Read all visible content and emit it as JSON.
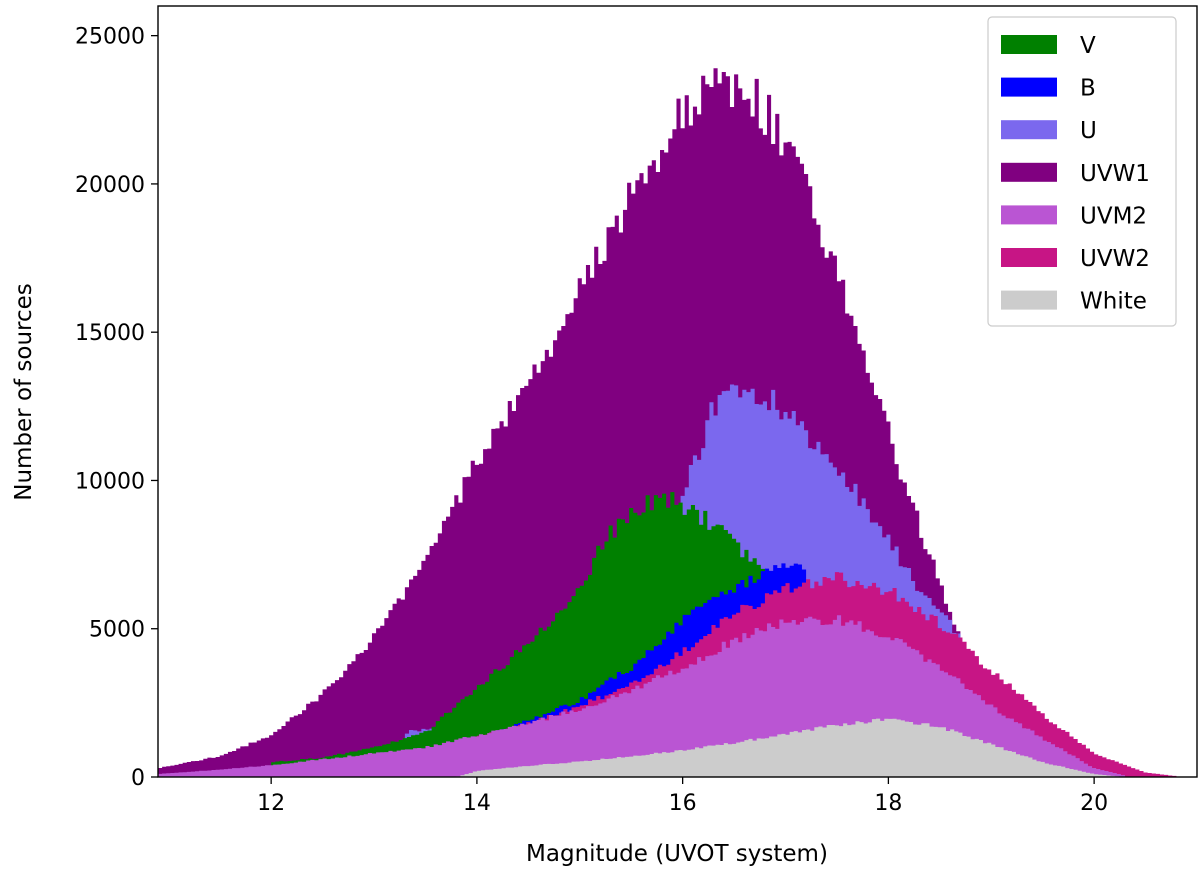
{
  "chart_data": {
    "type": "area",
    "xlabel": "Magnitude (UVOT system)",
    "ylabel": "Number of sources",
    "xlim": [
      10.9,
      21.0
    ],
    "ylim": [
      0,
      26000
    ],
    "xticks": [
      12,
      14,
      16,
      18,
      20
    ],
    "yticks": [
      0,
      5000,
      10000,
      15000,
      20000,
      25000
    ],
    "grid": false,
    "legend_position": "top-right",
    "draw_order": [
      "UVW1",
      "U",
      "V",
      "B",
      "UVW2",
      "UVM2",
      "White"
    ],
    "series": [
      {
        "name": "V",
        "color": "#008000",
        "x": [
          12.0,
          12.5,
          13.0,
          13.5,
          14.0,
          14.5,
          15.0,
          15.2,
          15.5,
          15.8,
          16.0,
          16.3,
          16.6,
          16.9
        ],
        "y": [
          500,
          650,
          1000,
          1500,
          3000,
          4500,
          6300,
          7800,
          9000,
          9400,
          9200,
          8500,
          7600,
          6800
        ]
      },
      {
        "name": "B",
        "color": "#0000ff",
        "x": [
          13.2,
          13.6,
          14.0,
          14.5,
          15.0,
          15.5,
          16.0,
          16.5,
          17.0,
          17.2
        ],
        "y": [
          800,
          1000,
          1300,
          1900,
          2600,
          3700,
          5300,
          6400,
          7200,
          6900
        ]
      },
      {
        "name": "U",
        "color": "#7b68ee",
        "x": [
          13.3,
          13.8,
          14.3,
          14.8,
          15.3,
          15.8,
          16.0,
          16.3,
          16.6,
          16.9,
          17.2,
          17.6,
          18.0,
          18.3,
          18.7
        ],
        "y": [
          1500,
          1800,
          2100,
          2700,
          4200,
          6800,
          9400,
          12500,
          13000,
          12700,
          11600,
          10000,
          8000,
          6300,
          4800
        ]
      },
      {
        "name": "UVW1",
        "color": "#800080",
        "x": [
          10.9,
          11.5,
          12.0,
          12.5,
          13.0,
          13.5,
          14.0,
          14.5,
          15.0,
          15.5,
          16.0,
          16.3,
          16.6,
          16.9,
          17.2,
          17.5,
          17.8,
          18.1,
          18.4,
          18.7,
          19.0,
          19.3
        ],
        "y": [
          300,
          700,
          1400,
          2800,
          4700,
          7200,
          10600,
          13300,
          16300,
          19700,
          22400,
          23100,
          23300,
          22000,
          19800,
          17000,
          14000,
          10600,
          7500,
          4700,
          2600,
          1100
        ]
      },
      {
        "name": "UVM2",
        "color": "#ba55d3",
        "x": [
          10.9,
          11.5,
          12.0,
          12.5,
          13.0,
          13.5,
          14.0,
          14.5,
          15.0,
          15.5,
          16.0,
          16.5,
          17.0,
          17.5,
          18.0,
          18.5,
          19.0,
          19.5,
          20.0,
          20.3
        ],
        "y": [
          100,
          250,
          400,
          600,
          800,
          1000,
          1400,
          1800,
          2300,
          2900,
          3700,
          4600,
          5200,
          5300,
          4800,
          3700,
          2400,
          1300,
          300,
          50
        ]
      },
      {
        "name": "UVW2",
        "color": "#c71585",
        "x": [
          14.0,
          14.5,
          15.0,
          15.5,
          16.0,
          16.5,
          17.0,
          17.5,
          18.0,
          18.5,
          19.0,
          19.5,
          20.0,
          20.5,
          20.8
        ],
        "y": [
          1400,
          1800,
          2400,
          3100,
          4200,
          5500,
          6400,
          6700,
          6300,
          5200,
          3600,
          2100,
          800,
          150,
          30
        ]
      },
      {
        "name": "White",
        "color": "#cccccc",
        "x": [
          13.8,
          14.0,
          14.5,
          15.0,
          15.5,
          16.0,
          16.5,
          17.0,
          17.5,
          18.0,
          18.5,
          19.0,
          19.5,
          20.0,
          20.3
        ],
        "y": [
          0,
          200,
          380,
          520,
          700,
          900,
          1150,
          1450,
          1750,
          1950,
          1700,
          1100,
          500,
          100,
          0
        ]
      }
    ]
  }
}
